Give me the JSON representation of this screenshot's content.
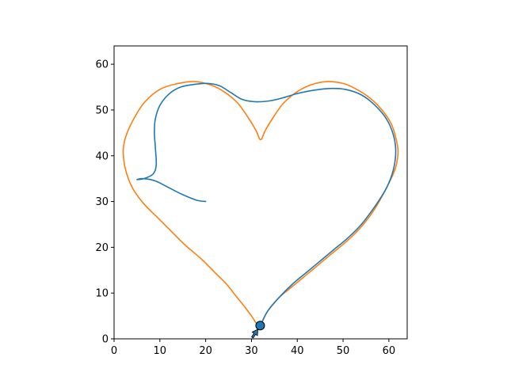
{
  "chart_data": {
    "type": "line",
    "title": "",
    "xlabel": "",
    "ylabel": "",
    "xlim": [
      0,
      64
    ],
    "ylim": [
      0,
      64
    ],
    "grid": false,
    "legend": "none",
    "xticks": [
      0,
      10,
      20,
      30,
      40,
      50,
      60
    ],
    "yticks": [
      0,
      10,
      20,
      30,
      40,
      50,
      60
    ],
    "series": [
      {
        "color": "#ff7f0e",
        "x": [
          32.0,
          33.5,
          36.0,
          39.0,
          42.0,
          45.0,
          48.0,
          51.0,
          54.0,
          57.0,
          60.0,
          61.5,
          62.0,
          61.5,
          60.5,
          58.5,
          56.0,
          53.0,
          50.0,
          46.5,
          43.0,
          40.0,
          37.0,
          34.5,
          33.0,
          32.0,
          31.0,
          29.5,
          27.0,
          24.0,
          21.0,
          17.5,
          14.0,
          10.0,
          6.5,
          4.0,
          2.5,
          2.0,
          2.5,
          4.0,
          6.5,
          9.5,
          12.5,
          15.5,
          19.0,
          22.0,
          24.5,
          26.5,
          28.5,
          30.0,
          31.0,
          31.5,
          32.0
        ],
        "y": [
          3.0,
          6.0,
          9.0,
          11.5,
          14.0,
          16.5,
          19.0,
          21.5,
          24.5,
          28.5,
          34.0,
          37.5,
          41.0,
          44.0,
          47.0,
          50.0,
          52.5,
          54.5,
          55.8,
          56.2,
          55.5,
          54.0,
          51.5,
          48.0,
          45.5,
          43.5,
          45.5,
          48.0,
          51.5,
          54.0,
          55.5,
          56.2,
          55.8,
          54.5,
          51.5,
          47.5,
          44.0,
          41.0,
          37.0,
          33.0,
          29.5,
          26.5,
          23.5,
          20.5,
          17.5,
          14.5,
          12.0,
          9.5,
          7.0,
          5.0,
          3.5,
          3.2,
          3.0
        ]
      },
      {
        "color": "#1f77b4",
        "x": [
          32.0,
          33.5,
          36.0,
          39.0,
          42.0,
          45.0,
          48.0,
          51.0,
          54.0,
          57.0,
          59.5,
          61.0,
          61.5,
          61.0,
          59.5,
          57.0,
          54.0,
          50.5,
          47.0,
          43.5,
          40.0,
          37.0,
          34.0,
          31.0,
          28.0,
          25.5,
          23.0,
          20.5,
          17.5,
          14.5,
          12.0,
          10.0,
          9.0,
          8.8,
          9.0,
          9.2,
          8.5,
          6.5,
          5.0,
          6.5,
          9.0,
          12.0,
          15.0,
          18.0,
          20.0
        ],
        "y": [
          3.0,
          6.0,
          9.0,
          12.0,
          14.5,
          17.0,
          19.5,
          22.0,
          25.0,
          29.0,
          33.0,
          37.0,
          41.0,
          44.5,
          48.0,
          51.0,
          53.3,
          54.5,
          54.7,
          54.3,
          53.6,
          52.7,
          52.0,
          51.8,
          52.3,
          53.8,
          55.3,
          55.8,
          55.6,
          55.0,
          53.5,
          51.0,
          48.0,
          45.0,
          42.0,
          38.0,
          36.0,
          35.0,
          34.8,
          35.0,
          34.5,
          33.0,
          31.5,
          30.3,
          30.0
        ]
      }
    ],
    "markers": [
      {
        "x": 31.9,
        "y": 2.9,
        "color": "#1f77b4",
        "edgecolor": "#000000"
      }
    ],
    "arrows": [
      {
        "x": 30.2,
        "y": 0.3,
        "dx": 1.2,
        "dy": 1.8,
        "color": "#1f77b4",
        "edgecolor": "#000000"
      }
    ]
  }
}
